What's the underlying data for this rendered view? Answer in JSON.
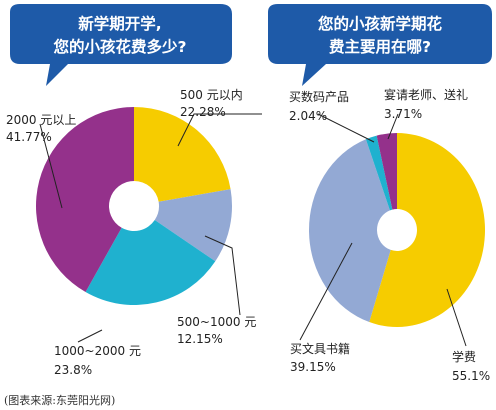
{
  "colors": {
    "bubble": "#1e5aa8",
    "purple": "#94318b",
    "yellow": "#f6cc00",
    "light_blue": "#93a9d4",
    "cyan": "#1fb1cf",
    "line": "#222222"
  },
  "source_note": "(图表来源:东莞阳光网)",
  "chart_data": [
    {
      "type": "pie",
      "title_lines": [
        "新学期开学,",
        "您的小孩花费多少?"
      ],
      "slices": [
        {
          "name_label": "500 元以内",
          "value": 22.28,
          "value_label": "22.28%",
          "color": "#f6cc00"
        },
        {
          "name_label": "500~1000 元",
          "value": 12.15,
          "value_label": "12.15%",
          "color": "#93a9d4"
        },
        {
          "name_label": "1000~2000 元",
          "value": 23.8,
          "value_label": "23.8%",
          "color": "#1fb1cf"
        },
        {
          "name_label": "2000 元以上",
          "value": 41.77,
          "value_label": "41.77%",
          "color": "#94318b"
        }
      ]
    },
    {
      "type": "pie",
      "title_lines": [
        "您的小孩新学期花",
        "费主要用在哪?"
      ],
      "slices": [
        {
          "name_label": "学费",
          "value": 55.1,
          "value_label": "55.1%",
          "color": "#f6cc00"
        },
        {
          "name_label": "买文具书籍",
          "value": 39.15,
          "value_label": "39.15%",
          "color": "#93a9d4"
        },
        {
          "name_label": "买数码产品",
          "value": 2.04,
          "value_label": "2.04%",
          "color": "#1fb1cf"
        },
        {
          "name_label": "宴请老师、送礼",
          "value": 3.71,
          "value_label": "3.71%",
          "color": "#94318b"
        }
      ]
    }
  ]
}
